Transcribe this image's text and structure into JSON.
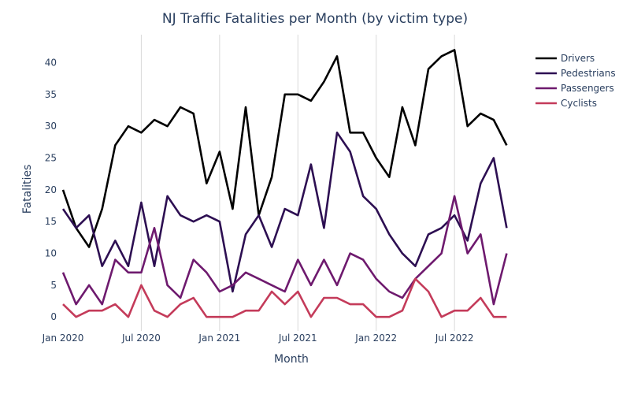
{
  "chart_data": {
    "type": "line",
    "title": "NJ Traffic Fatalities per Month (by victim type)",
    "xlabel": "Month",
    "ylabel": "Fatalities",
    "x_start": "2020-01",
    "x_ticks": [
      {
        "label": "Jan 2020",
        "month": "2020-01"
      },
      {
        "label": "Jul 2020",
        "month": "2020-07"
      },
      {
        "label": "Jan 2021",
        "month": "2021-01"
      },
      {
        "label": "Jul 2021",
        "month": "2021-07"
      },
      {
        "label": "Jan 2022",
        "month": "2022-01"
      },
      {
        "label": "Jul 2022",
        "month": "2022-07"
      }
    ],
    "xlim": [
      "2020-01",
      "2022-12"
    ],
    "y_ticks": [
      0,
      5,
      10,
      15,
      20,
      25,
      30,
      35,
      40
    ],
    "ylim": [
      -2.2,
      44.4
    ],
    "grid": "vertical",
    "legend_position": "top-right",
    "series": [
      {
        "name": "Drivers",
        "color": "#000000",
        "values": [
          20,
          14,
          11,
          17,
          27,
          30,
          29,
          31,
          30,
          33,
          32,
          21,
          26,
          17,
          33,
          16,
          22,
          35,
          35,
          34,
          37,
          41,
          29,
          29,
          25,
          22,
          33,
          27,
          39,
          41,
          42,
          30,
          32,
          31,
          27
        ]
      },
      {
        "name": "Pedestrians",
        "color": "#2d0f52",
        "values": [
          17,
          14,
          16,
          8,
          12,
          8,
          18,
          8,
          19,
          16,
          15,
          16,
          15,
          4,
          13,
          16,
          11,
          17,
          16,
          24,
          14,
          29,
          26,
          19,
          17,
          13,
          10,
          8,
          13,
          14,
          16,
          12,
          21,
          25,
          14
        ]
      },
      {
        "name": "Passengers",
        "color": "#6e1a6e",
        "values": [
          7,
          2,
          5,
          2,
          9,
          7,
          7,
          14,
          5,
          3,
          9,
          7,
          4,
          5,
          7,
          6,
          5,
          4,
          9,
          5,
          9,
          5,
          10,
          9,
          6,
          4,
          3,
          6,
          8,
          10,
          19,
          10,
          13,
          2,
          10
        ]
      },
      {
        "name": "Cyclists",
        "color": "#c43b5a",
        "values": [
          2,
          0,
          1,
          1,
          2,
          0,
          5,
          1,
          0,
          2,
          3,
          0,
          0,
          0,
          1,
          1,
          4,
          2,
          4,
          0,
          3,
          3,
          2,
          2,
          0,
          0,
          1,
          6,
          4,
          0,
          1,
          1,
          3,
          0,
          0
        ]
      }
    ]
  }
}
